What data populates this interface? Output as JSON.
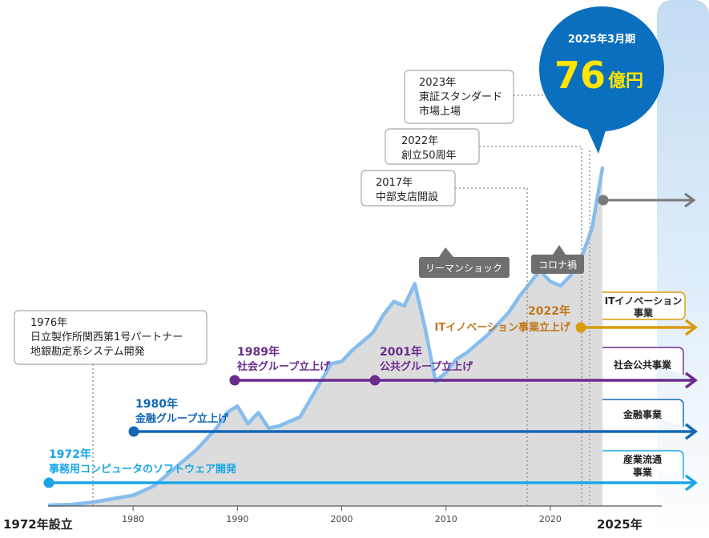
{
  "chart_data": {
    "type": "area",
    "title": "",
    "xlabel": "",
    "ylabel": "",
    "x_range": [
      1972,
      2025
    ],
    "start_label": "1972年設立",
    "end_label": "2025年",
    "x_ticks": [
      "1980",
      "1990",
      "2000",
      "2010",
      "2020"
    ],
    "series": [
      {
        "x": [
          1972,
          1974,
          1976,
          1978,
          1980,
          1982,
          1984,
          1986,
          1988,
          1989,
          1990,
          1991,
          1992,
          1993,
          1994,
          1995,
          1996,
          1997,
          1998,
          1999,
          2000,
          2001,
          2002,
          2003,
          2004,
          2005,
          2006,
          2007,
          2008,
          2009,
          2010,
          2011,
          2012,
          2013,
          2014,
          2015,
          2016,
          2017,
          2018,
          2019,
          2020,
          2021,
          2022,
          2023,
          2024,
          2025
        ],
        "values": [
          0.2,
          0.3,
          0.8,
          1.6,
          2.4,
          4.5,
          8.5,
          12.5,
          17.5,
          21.0,
          22.5,
          18.5,
          21.0,
          17.5,
          18.0,
          19.0,
          20.0,
          24.0,
          28.0,
          32.0,
          32.5,
          35.0,
          37.0,
          39.0,
          43.0,
          46.0,
          45.0,
          50.0,
          40.0,
          28.0,
          30.0,
          33.0,
          34.5,
          36.5,
          38.5,
          41.0,
          43.5,
          47.0,
          50.0,
          53.0,
          50.5,
          49.5,
          52.0,
          56.0,
          62.5,
          76.0
        ]
      }
    ],
    "callout": {
      "period": "2025年3月期",
      "value": "76",
      "unit": "億円"
    },
    "annotations": [
      {
        "id": "tse",
        "lines": [
          "2023年",
          "東証スタンダード",
          "市場上場"
        ]
      },
      {
        "id": "fifty",
        "lines": [
          "2022年",
          "創立50周年"
        ]
      },
      {
        "id": "chubu",
        "lines": [
          "2017年",
          "中部支店開設"
        ]
      },
      {
        "id": "partner",
        "lines": [
          "1976年",
          "日立製作所関西第1号パートナー",
          "地銀勘定系システム開発"
        ]
      }
    ],
    "events": [
      {
        "id": "lehman",
        "label": "リーマンショック"
      },
      {
        "id": "corona",
        "label": "コロナ禍"
      }
    ],
    "business_lines": [
      {
        "id": "industrial",
        "year_label": "1972年",
        "text": "事務用コンピュータのソフトウェア開発",
        "segment": [
          "産業流通",
          "事業"
        ],
        "color": "#1aa6e6"
      },
      {
        "id": "finance",
        "year_label": "1980年",
        "text": "金融グループ立上げ",
        "segment": [
          "金融事業"
        ],
        "color": "#1268b6"
      },
      {
        "id": "social",
        "year_label": "1989年",
        "text": "社会グループ立上げ",
        "year_label2": "2001年",
        "text2": "公共グループ立上げ",
        "segment": [
          "社会公共事業"
        ],
        "color": "#6a2c8c"
      },
      {
        "id": "it",
        "year_label": "2022年",
        "text": "ITイノベーション事業立上げ",
        "segment": [
          "ITイノベーション",
          "事業"
        ],
        "color": "#d79c0a"
      }
    ],
    "colors": {
      "area_fill": "#dcdcdc",
      "line": "#86bdee",
      "bubble": "#0b6fbf",
      "bubble_value": "#ffe500",
      "forward_arrow": "#7a7a7a",
      "event_box": "#6f6f6f"
    }
  }
}
